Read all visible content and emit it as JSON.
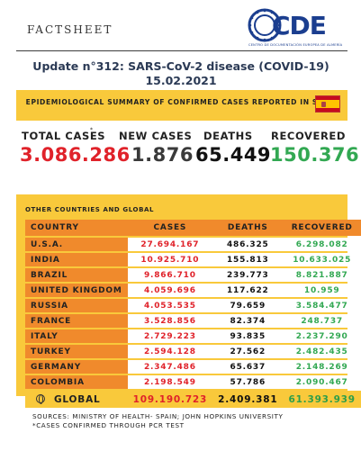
{
  "header": {
    "factsheet_label": "FACTSHEET",
    "logo_text": "CDE",
    "logo_subtext": "CENTRO DE DOCUMENTACIÓN EUROPEA DE ALMERÍA"
  },
  "update_title": "Update n°312: SARS-CoV-2 disease (COVID-19) 15.02.2021",
  "spain_summary": {
    "header": "EPIDEMIOLOGICAL SUMMARY OF CONFIRMED CASES REPORTED IN SPAIN",
    "total_cases_label": "TOTAL CASES",
    "total_cases_note": "*",
    "total_cases": "3.086.286",
    "new_cases_label": "NEW CASES",
    "new_cases": "1.876",
    "deaths_label": "DEATHS",
    "deaths": "65.449",
    "recovered_label": "RECOVERED",
    "recovered": "150.376"
  },
  "other_section_label": "OTHER COUNTRIES AND GLOBAL",
  "table": {
    "columns": [
      "COUNTRY",
      "CASES",
      "DEATHS",
      "RECOVERED"
    ],
    "rows": [
      {
        "country": "U.S.A.",
        "cases": "27.694.167",
        "deaths": "486.325",
        "recovered": "6.298.082"
      },
      {
        "country": "INDIA",
        "cases": "10.925.710",
        "deaths": "155.813",
        "recovered": "10.633.025"
      },
      {
        "country": "BRAZIL",
        "cases": "9.866.710",
        "deaths": "239.773",
        "recovered": "8.821.887"
      },
      {
        "country": "UNITED KINGDOM",
        "cases": "4.059.696",
        "deaths": "117.622",
        "recovered": "10.959"
      },
      {
        "country": "RUSSIA",
        "cases": "4.053.535",
        "deaths": "79.659",
        "recovered": "3.584.477"
      },
      {
        "country": "FRANCE",
        "cases": "3.528.856",
        "deaths": "82.374",
        "recovered": "248.737"
      },
      {
        "country": "ITALY",
        "cases": "2.729.223",
        "deaths": "93.835",
        "recovered": "2.237.290"
      },
      {
        "country": "TURKEY",
        "cases": "2.594.128",
        "deaths": "27.562",
        "recovered": "2.482.435"
      },
      {
        "country": "GERMANY",
        "cases": "2.347.486",
        "deaths": "65.637",
        "recovered": "2.148.269"
      },
      {
        "country": "COLOMBIA",
        "cases": "2.198.549",
        "deaths": "57.786",
        "recovered": "2.090.467"
      }
    ],
    "global": {
      "country": "GLOBAL",
      "cases": "109.190.723",
      "deaths": "2.409.381",
      "recovered": "61.393.939"
    }
  },
  "sources": {
    "line1": "SOURCES: MINISTRY OF HEALTH- SPAIN; JOHN HOPKINS UNIVERSITY",
    "line2": "*CASES CONFIRMED THROUGH PCR TEST"
  },
  "colors": {
    "panel_yellow": "#f9c93b",
    "country_orange": "#f08a2c",
    "cases_red": "#e0222a",
    "recovered_green": "#32a852",
    "logo_blue": "#1b3e8f"
  },
  "icons": [
    "cde-logo-emblem",
    "spain-flag-icon",
    "globe-icon"
  ]
}
